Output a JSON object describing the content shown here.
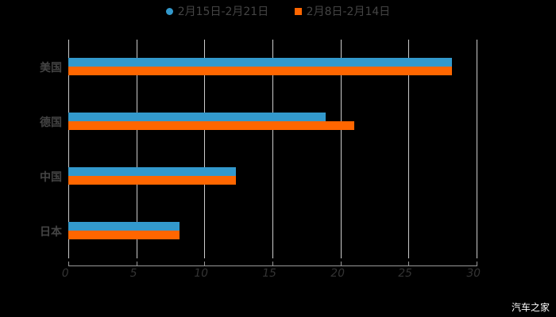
{
  "chart_data": {
    "type": "bar",
    "orientation": "horizontal",
    "categories": [
      "美国",
      "德国",
      "中国",
      "日本"
    ],
    "series": [
      {
        "name": "2月15日-2月21日",
        "color": "#3399CC",
        "values": [
          28.2,
          18.9,
          12.3,
          8.2
        ]
      },
      {
        "name": "2月8日-2月14日",
        "color": "#FF6600",
        "values": [
          28.2,
          21.0,
          12.3,
          8.2
        ]
      }
    ],
    "xlim": [
      0,
      30
    ],
    "xticks": [
      "0",
      "5",
      "10",
      "15",
      "20",
      "25",
      "30"
    ],
    "legend_position": "top",
    "grid": true,
    "title": "",
    "xlabel": "",
    "ylabel": ""
  },
  "legend": [
    "2月15日-2月21日",
    "2月8日-2月14日"
  ],
  "watermark": "汽车之家"
}
